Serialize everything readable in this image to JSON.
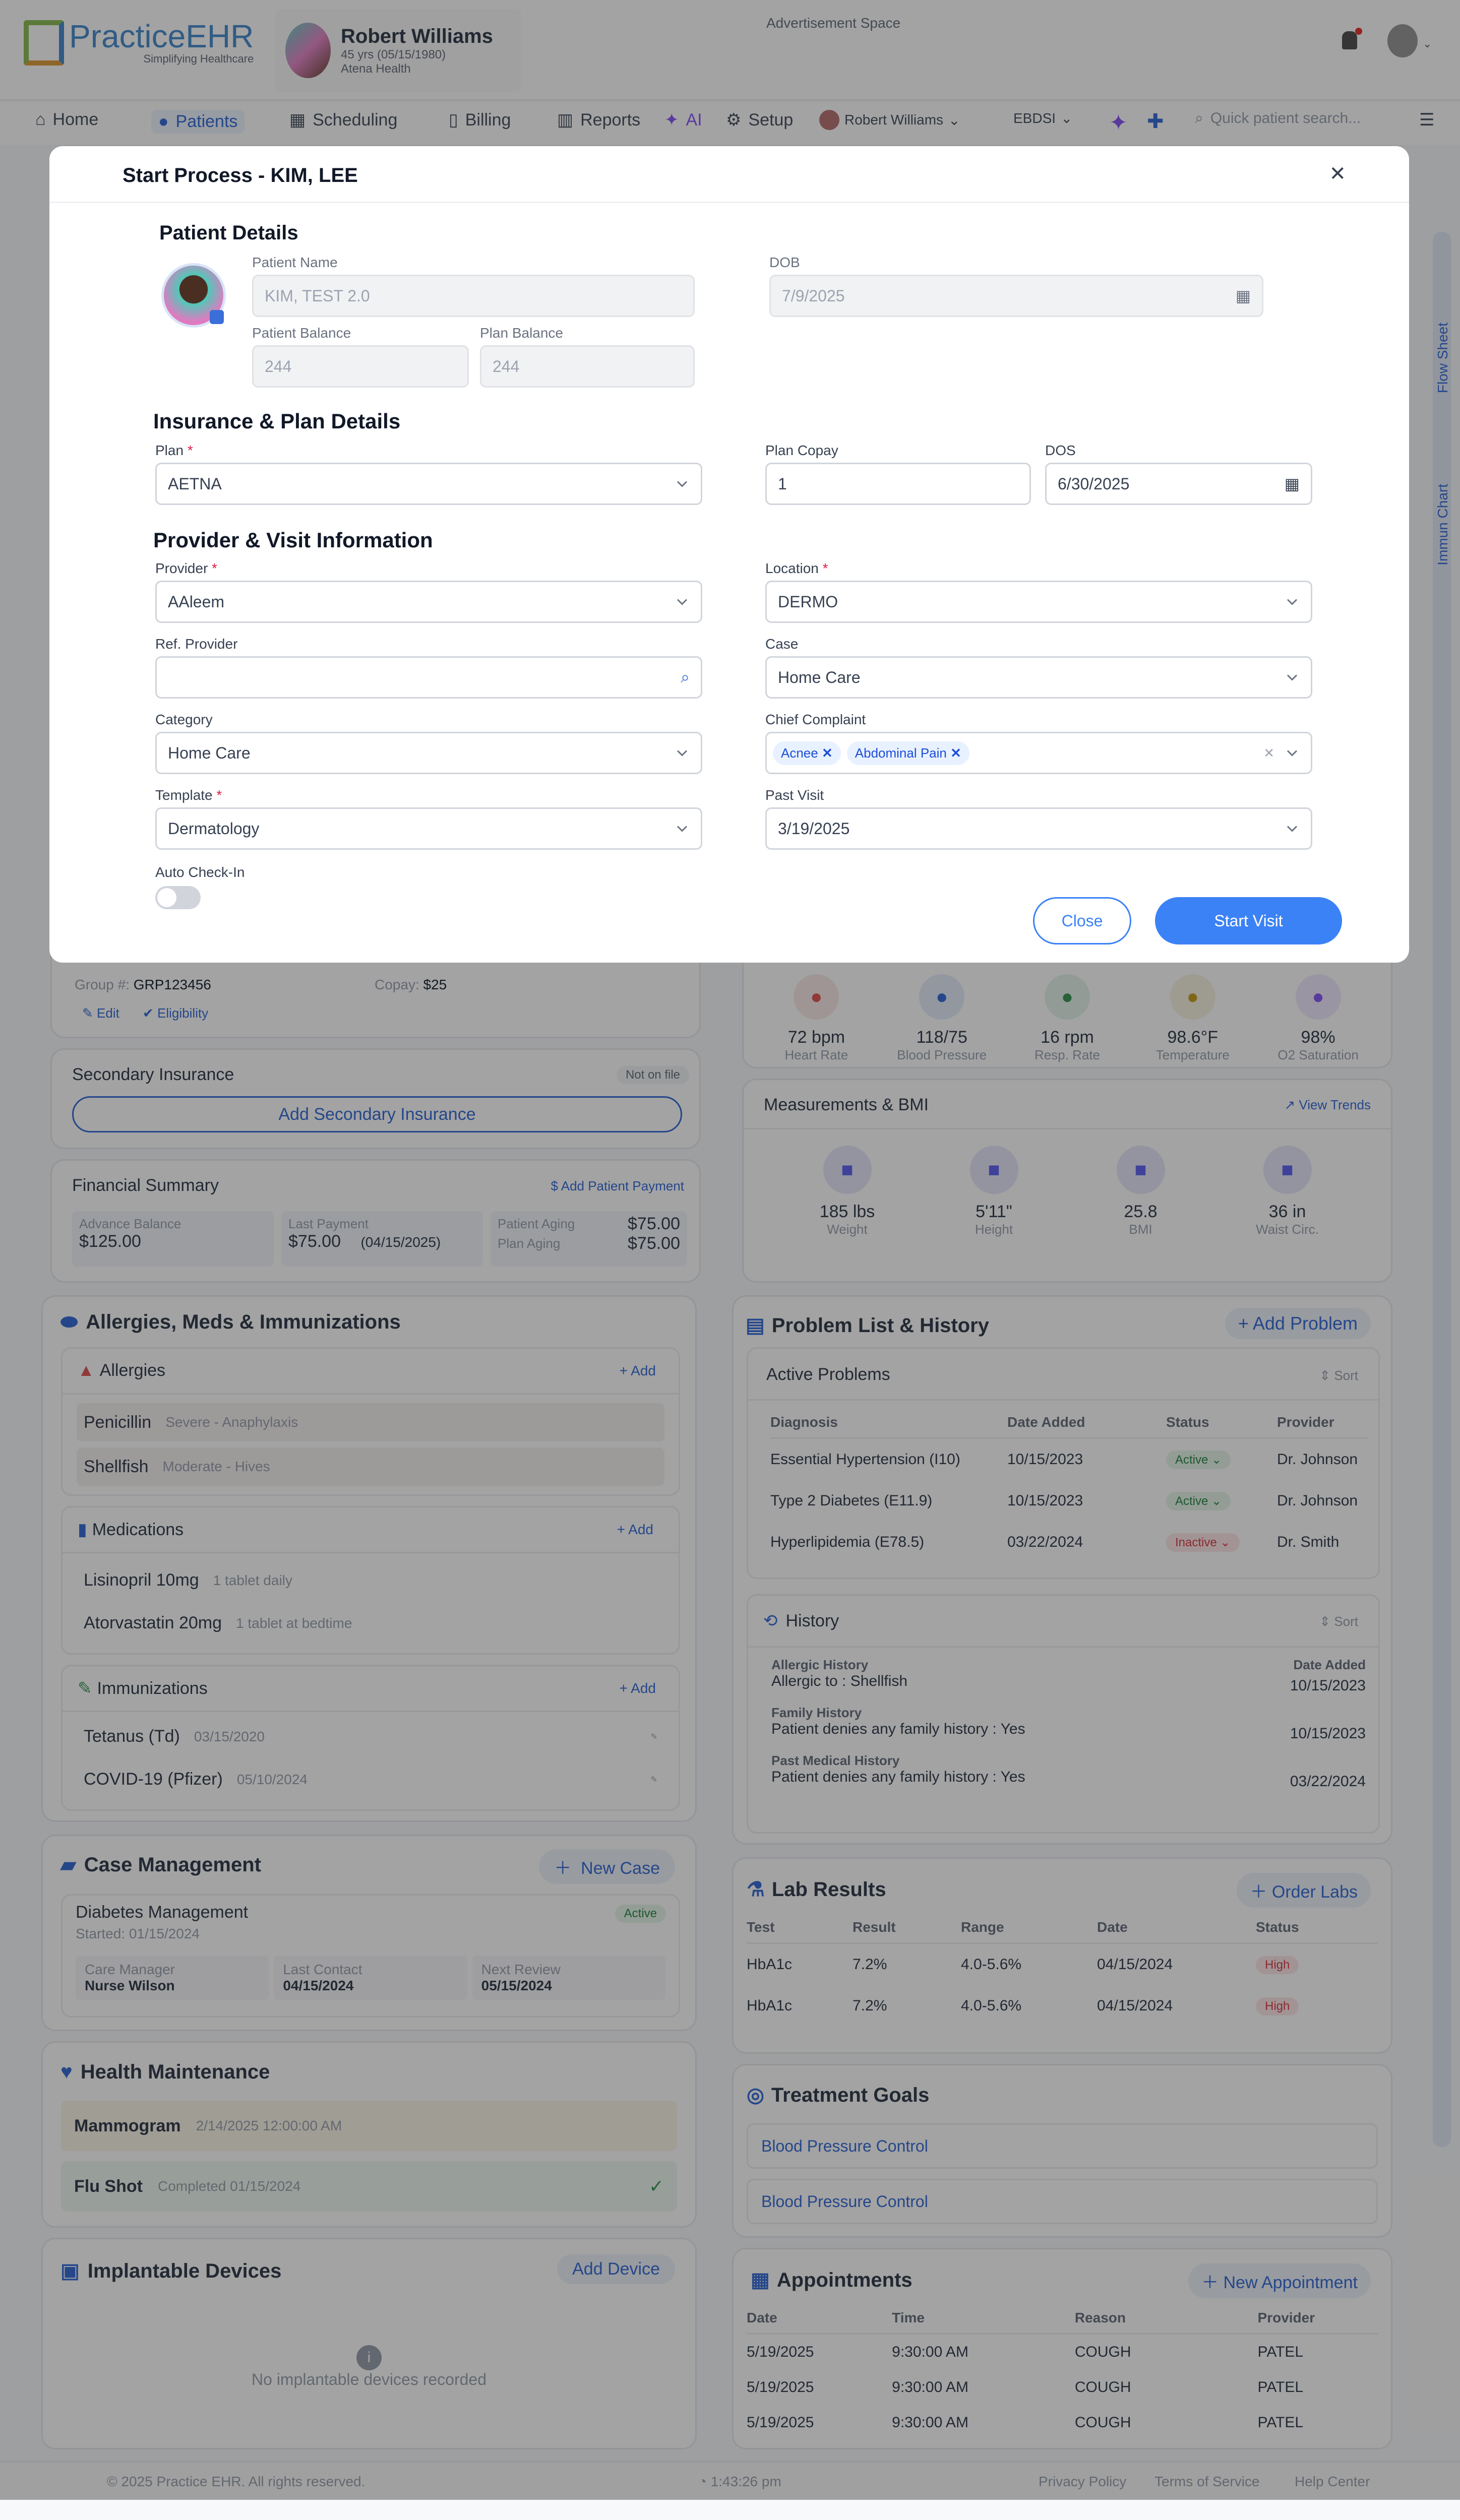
{
  "header": {
    "logo_text": "PracticeEHR",
    "logo_tagline": "Simplifying Healthcare",
    "patient": {
      "name": "Robert Williams",
      "age": "45 yrs (05/15/1980)",
      "insurer": "Atena Health"
    },
    "ad": "Advertisement Space"
  },
  "nav": {
    "items": [
      "Home",
      "Patients",
      "Scheduling",
      "Billing",
      "Reports",
      "AI",
      "Setup"
    ],
    "active": "Patients",
    "user": "Robert Williams",
    "org": "EBDSI",
    "search_placeholder": "Quick patient search..."
  },
  "side_tabs": [
    "Flow Sheet",
    "Immun Chart"
  ],
  "modal": {
    "title": "Start Process - KIM, LEE",
    "patient_details": {
      "heading": "Patient Details",
      "name_label": "Patient Name",
      "name": "KIM, TEST 2.0",
      "dob_label": "DOB",
      "dob": "7/9/2025",
      "patient_balance_label": "Patient Balance",
      "patient_balance": "244",
      "plan_balance_label": "Plan Balance",
      "plan_balance": "244"
    },
    "insurance": {
      "heading": "Insurance & Plan Details",
      "plan_label": "Plan",
      "plan": "AETNA",
      "copay_label": "Plan Copay",
      "copay": "1",
      "dos_label": "DOS",
      "dos": "6/30/2025"
    },
    "visit": {
      "heading": "Provider & Visit Information",
      "provider_label": "Provider",
      "provider": "AAleem",
      "location_label": "Location",
      "location": "DERMO",
      "ref_provider_label": "Ref. Provider",
      "ref_provider": "",
      "case_label": "Case",
      "case": "Home Care",
      "category_label": "Category",
      "category": "Home Care",
      "chief_complaint_label": "Chief Complaint",
      "chief_complaints": [
        "Acnee",
        "Abdominal Pain"
      ],
      "template_label": "Template",
      "template": "Dermatology",
      "past_visit_label": "Past Visit",
      "past_visit": "3/19/2025",
      "auto_checkin_label": "Auto Check-In",
      "auto_checkin": false
    },
    "close_label": "Close",
    "start_label": "Start Visit",
    "required_mark": "*"
  },
  "insurance_card": {
    "group_label": "Group #:",
    "group": "GRP123456",
    "copay_label": "Copay:",
    "copay": "$25",
    "edit": "Edit",
    "eligibility": "Eligibility"
  },
  "secondary": {
    "title": "Secondary Insurance",
    "badge": "Not on file",
    "button": "Add Secondary Insurance"
  },
  "financial": {
    "title": "Financial Summary",
    "action": "Add Patient Payment",
    "advance_label": "Advance Balance",
    "advance": "$125.00",
    "last_label": "Last Payment",
    "last": "$75.00",
    "last_date": "(04/15/2025)",
    "patient_aging_label": "Patient Aging",
    "patient_aging": "$75.00",
    "plan_aging_label": "Plan Aging",
    "plan_aging": "$75.00"
  },
  "vitals": [
    {
      "value": "72 bpm",
      "label": "Heart Rate",
      "color": "#e05a5a"
    },
    {
      "value": "118/75",
      "label": "Blood Pressure",
      "color": "#3b6fd8"
    },
    {
      "value": "16 rpm",
      "label": "Resp. Rate",
      "color": "#3f9a5d"
    },
    {
      "value": "98.6°F",
      "label": "Temperature",
      "color": "#c9a227"
    },
    {
      "value": "98%",
      "label": "O2 Saturation",
      "color": "#8b5cf6"
    }
  ],
  "measurements": {
    "title": "Measurements & BMI",
    "action": "View Trends",
    "items": [
      {
        "value": "185 lbs",
        "label": "Weight"
      },
      {
        "value": "5'11\"",
        "label": "Height"
      },
      {
        "value": "25.8",
        "label": "BMI"
      },
      {
        "value": "36 in",
        "label": "Waist Circ."
      }
    ]
  },
  "ami": {
    "title": "Allergies, Meds & Immunizations",
    "add": "+ Add",
    "allergies": {
      "title": "Allergies",
      "items": [
        {
          "name": "Penicillin",
          "detail": "Severe - Anaphylaxis"
        },
        {
          "name": "Shellfish",
          "detail": "Moderate - Hives"
        }
      ]
    },
    "medications": {
      "title": "Medications",
      "items": [
        {
          "name": "Lisinopril 10mg",
          "detail": "1 tablet daily"
        },
        {
          "name": "Atorvastatin 20mg",
          "detail": "1 tablet at bedtime"
        }
      ]
    },
    "immunizations": {
      "title": "Immunizations",
      "items": [
        {
          "name": "Tetanus (Td)",
          "detail": "03/15/2020"
        },
        {
          "name": "COVID-19 (Pfizer)",
          "detail": "05/10/2024"
        }
      ]
    }
  },
  "problems": {
    "title": "Problem List  & History",
    "add": "+ Add Problem",
    "active_title": "Active Problems",
    "sort": "Sort",
    "columns": [
      "Diagnosis",
      "Date Added",
      "Status",
      "Provider"
    ],
    "rows": [
      [
        "Essential Hypertension (I10)",
        "10/15/2023",
        "Active",
        "Dr. Johnson"
      ],
      [
        "Type 2 Diabetes (E11.9)",
        "10/15/2023",
        "Active",
        "Dr. Johnson"
      ],
      [
        "Hyperlipidemia (E78.5)",
        "03/22/2024",
        "Inactive",
        "Dr. Smith"
      ]
    ],
    "history_title": "History",
    "date_added": "Date Added",
    "history": [
      {
        "type": "Allergic History",
        "text": "Allergic to : Shellfish",
        "date": "10/15/2023"
      },
      {
        "type": "Family History",
        "text": "Patient denies any family history : Yes",
        "date": "10/15/2023"
      },
      {
        "type": "Past Medical History",
        "text": "Patient denies any family history : Yes",
        "date": "03/22/2024"
      }
    ]
  },
  "labs": {
    "title": "Lab Results",
    "action": "Order Labs",
    "columns": [
      "Test",
      "Result",
      "Range",
      "Date",
      "Status"
    ],
    "rows": [
      [
        "HbA1c",
        "7.2%",
        "4.0-5.6%",
        "04/15/2024",
        "High"
      ],
      [
        "HbA1c",
        "7.2%",
        "4.0-5.6%",
        "04/15/2024",
        "High"
      ]
    ]
  },
  "goals": {
    "title": "Treatment Goals",
    "items": [
      "Blood Pressure Control",
      "Blood Pressure Control"
    ]
  },
  "appointments": {
    "title": "Appointments",
    "action": "New Appointment",
    "columns": [
      "Date",
      "Time",
      "Reason",
      "Provider"
    ],
    "rows": [
      [
        "5/19/2025",
        "9:30:00 AM",
        "COUGH",
        "PATEL"
      ],
      [
        "5/19/2025",
        "9:30:00 AM",
        "COUGH",
        "PATEL"
      ],
      [
        "5/19/2025",
        "9:30:00 AM",
        "COUGH",
        "PATEL"
      ]
    ]
  },
  "case_mgmt": {
    "title": "Case Management",
    "action": "New Case",
    "case": "Diabetes Management",
    "started": "Started: 01/15/2024",
    "status": "Active",
    "manager_label": "Care Manager",
    "manager": "Nurse Wilson",
    "last_label": "Last Contact",
    "last": "04/15/2024",
    "next_label": "Next Review",
    "next": "05/15/2024"
  },
  "health": {
    "title": "Health Maintenance",
    "items": [
      {
        "name": "Mammogram",
        "detail": "2/14/2025 12:00:00 AM"
      },
      {
        "name": "Flu Shot",
        "detail": "Completed 01/15/2024"
      }
    ]
  },
  "devices": {
    "title": "Implantable Devices",
    "action": "Add Device",
    "empty": "No implantable devices recorded"
  },
  "footer": {
    "copyright": "© 2025 Practice EHR. All rights reserved.",
    "time": "1:43:26 pm",
    "links": [
      "Privacy Policy",
      "Terms of Service",
      "Help Center"
    ]
  }
}
